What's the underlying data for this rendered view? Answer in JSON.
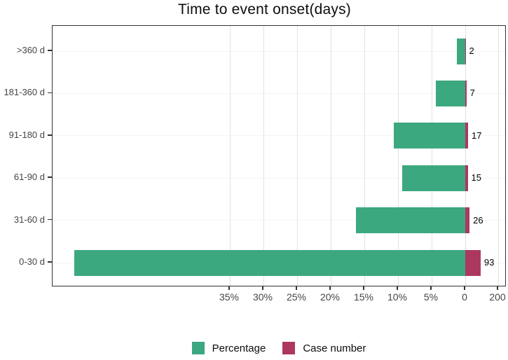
{
  "chart_data": {
    "type": "bar",
    "orientation": "horizontal-diverging",
    "title": "Time to event onset(days)",
    "grid": "major-vertical-light",
    "legend_position": "bottom-center",
    "categories_top_to_bottom": [
      ">360 d",
      "181-360 d",
      "91-180 d",
      "61-90 d",
      "31-60 d",
      "0-30 d"
    ],
    "rows": [
      {
        "category": ">360 d",
        "case_number": 2,
        "percentage": 1.25,
        "case_label": "2"
      },
      {
        "category": "181-360 d",
        "case_number": 7,
        "percentage": 4.375,
        "case_label": "7"
      },
      {
        "category": "91-180 d",
        "case_number": 17,
        "percentage": 10.625,
        "case_label": "17"
      },
      {
        "category": "61-90 d",
        "case_number": 15,
        "percentage": 9.375,
        "case_label": "15"
      },
      {
        "category": "31-60 d",
        "case_number": 26,
        "percentage": 16.25,
        "case_label": "26"
      },
      {
        "category": "0-30 d",
        "case_number": 93,
        "percentage": 58.125,
        "case_label": "93"
      }
    ],
    "series": [
      {
        "name": "Percentage",
        "color": "#3CA87F",
        "direction": "left",
        "values": [
          1.25,
          4.375,
          10.625,
          9.375,
          16.25,
          58.125
        ],
        "unit": "%"
      },
      {
        "name": "Case number",
        "color": "#AC3860",
        "direction": "right",
        "values": [
          2,
          7,
          17,
          15,
          26,
          93
        ],
        "unit": "cases"
      }
    ],
    "x_axis": {
      "ticks": [
        {
          "label": "35%",
          "axis": "percent",
          "value": 35
        },
        {
          "label": "30%",
          "axis": "percent",
          "value": 30
        },
        {
          "label": "25%",
          "axis": "percent",
          "value": 25
        },
        {
          "label": "20%",
          "axis": "percent",
          "value": 20
        },
        {
          "label": "15%",
          "axis": "percent",
          "value": 15
        },
        {
          "label": "10%",
          "axis": "percent",
          "value": 10
        },
        {
          "label": "5%",
          "axis": "percent",
          "value": 5
        },
        {
          "label": "0",
          "axis": "percent",
          "value": 0
        },
        {
          "label": "200",
          "axis": "cases",
          "value": 200
        }
      ],
      "percent_axis": {
        "min": 0,
        "max": 61.5,
        "direction": "right-to-left"
      },
      "case_axis": {
        "min": 0,
        "max": 250,
        "direction": "left-to-right"
      }
    },
    "legend": [
      {
        "label": "Percentage",
        "color": "#3CA87F"
      },
      {
        "label": "Case number",
        "color": "#AC3860"
      }
    ],
    "colors": {
      "percentage": "#3CA87F",
      "case_number": "#AC3860"
    }
  }
}
